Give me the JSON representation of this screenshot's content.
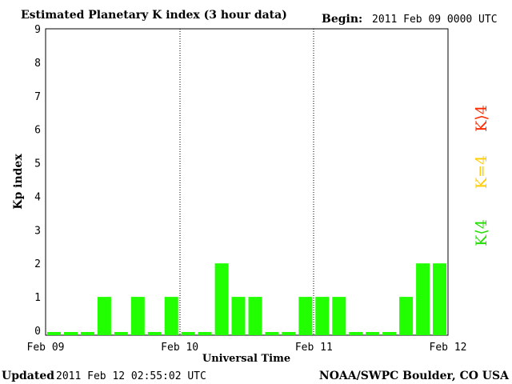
{
  "header": {
    "title": "Estimated Planetary K index (3 hour data)",
    "begin_label": "Begin:",
    "begin_value": "2011 Feb 09 0000 UTC"
  },
  "footer": {
    "updated_label": "Updated",
    "updated_value": "2011 Feb 12 02:55:02 UTC",
    "credit": "NOAA/SWPC Boulder, CO USA"
  },
  "legend": {
    "high": {
      "label": "K⟩4",
      "color": "#ff2a00"
    },
    "equal": {
      "label": "K=4",
      "color": "#ffcc00"
    },
    "low": {
      "label": "K⟨4",
      "color": "#22dd00"
    }
  },
  "chart_data": {
    "type": "bar",
    "title": "Estimated Planetary K index (3 hour data)",
    "xlabel": "Universal Time",
    "ylabel": "Kp index",
    "ylim": [
      0,
      9
    ],
    "yticks": [
      "0",
      "1",
      "2",
      "3",
      "4",
      "5",
      "6",
      "7",
      "8",
      "9"
    ],
    "xticks": [
      "Feb 09",
      "Feb 10",
      "Feb 11",
      "Feb 12"
    ],
    "bar_color": "#22ff00",
    "series": [
      {
        "values": [
          0,
          0,
          0,
          1,
          0,
          1,
          0,
          1,
          0,
          0,
          2,
          1,
          1,
          0,
          0,
          1,
          1,
          1,
          0,
          0,
          0,
          1,
          2,
          2
        ]
      }
    ]
  }
}
